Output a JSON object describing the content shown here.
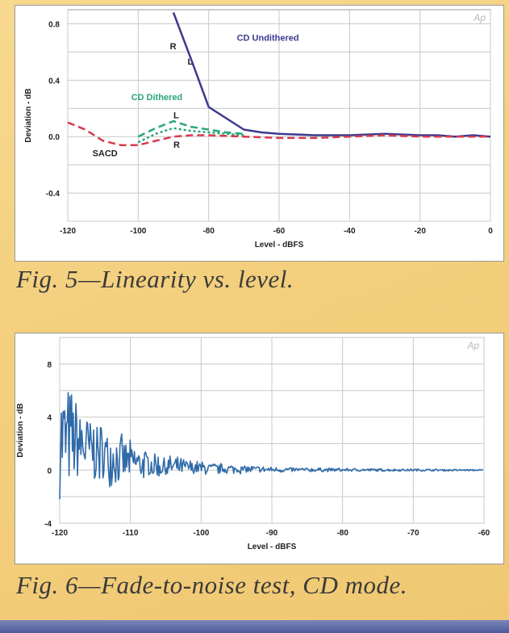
{
  "chart_data": [
    {
      "type": "line",
      "title": "",
      "caption": "Fig. 5—Linearity vs. level.",
      "xlabel": "Level - dBFS",
      "ylabel": "Deviation - dB",
      "xlim": [
        -120,
        0
      ],
      "ylim": [
        -0.6,
        0.9
      ],
      "x_ticks": [
        -120,
        -100,
        -80,
        -60,
        -40,
        -20,
        0
      ],
      "y_ticks": [
        0.8,
        0.4,
        0.0,
        -0.4
      ],
      "grid": true,
      "watermark": "Ap",
      "series": [
        {
          "name": "CD Undithered",
          "color": "#3c3a8e",
          "style": "solid",
          "x": [
            -90,
            -85,
            -80,
            -75,
            -70,
            -65,
            -60,
            -50,
            -40,
            -30,
            -20,
            -15,
            -10,
            -5,
            0
          ],
          "y": [
            0.88,
            0.55,
            0.21,
            0.13,
            0.05,
            0.03,
            0.02,
            0.01,
            0.01,
            0.02,
            0.01,
            0.01,
            0.0,
            0.01,
            0.0
          ]
        },
        {
          "name": "CD Dithered",
          "color": "#2aa57a",
          "style": "dashed",
          "x": [
            -100,
            -95,
            -90,
            -85,
            -80,
            -75,
            -70
          ],
          "y": [
            0.0,
            0.06,
            0.11,
            0.07,
            0.05,
            0.03,
            0.02
          ]
        },
        {
          "name": "",
          "color": "#2aa57a",
          "style": "dashed",
          "x": [
            -100,
            -95,
            -90,
            -85,
            -80,
            -75,
            -70
          ],
          "y": [
            -0.04,
            0.02,
            0.06,
            0.04,
            0.03,
            0.02,
            0.01
          ]
        },
        {
          "name": "SACD",
          "color": "#d83a4a",
          "style": "dashed",
          "x": [
            -120,
            -115,
            -110,
            -105,
            -100,
            -95,
            -90,
            -85,
            -80,
            -70,
            -60,
            -50,
            -40,
            -30,
            -20,
            -10,
            0
          ],
          "y": [
            0.1,
            0.05,
            -0.03,
            -0.06,
            -0.06,
            -0.03,
            0.0,
            0.01,
            0.01,
            0.0,
            -0.01,
            -0.01,
            0.0,
            0.01,
            0.0,
            0.0,
            0.0
          ]
        }
      ],
      "annotations": [
        {
          "text": "CD Undithered",
          "x": -72,
          "y": 0.68,
          "color": "#3c3a8e"
        },
        {
          "text": "CD Dithered",
          "x": -102,
          "y": 0.26,
          "color": "#2aa57a"
        },
        {
          "text": "SACD",
          "x": -113,
          "y": -0.14,
          "color": "#222222"
        },
        {
          "text": "R",
          "x": -91,
          "y": 0.62,
          "color": "#222222"
        },
        {
          "text": "L",
          "x": -86,
          "y": 0.51,
          "color": "#222222"
        },
        {
          "text": "L",
          "x": -90,
          "y": 0.13,
          "color": "#222222"
        },
        {
          "text": "R",
          "x": -90,
          "y": -0.08,
          "color": "#222222"
        }
      ]
    },
    {
      "type": "line",
      "title": "",
      "caption": "Fig. 6—Fade-to-noise test, CD mode.",
      "xlabel": "Level - dBFS",
      "ylabel": "Deviation - dB",
      "xlim": [
        -120,
        -60
      ],
      "ylim": [
        -4,
        10
      ],
      "x_ticks": [
        -120,
        -110,
        -100,
        -90,
        -80,
        -70,
        -60
      ],
      "y_ticks": [
        8,
        4,
        0,
        -4
      ],
      "grid": true,
      "watermark": "Ap",
      "series": [
        {
          "name": "",
          "color": "#2f6aa8",
          "style": "solid",
          "envelope": {
            "x": [
              -120,
              -118,
              -116,
              -114,
              -112,
              -110,
              -108,
              -106,
              -104,
              -102,
              -100,
              -98,
              -95,
              -92,
              -90,
              -85,
              -80,
              -75,
              -70,
              -65,
              -60
            ],
            "amplitude": [
              5.0,
              4.2,
              3.0,
              2.6,
              2.2,
              1.7,
              1.3,
              1.1,
              0.9,
              0.7,
              0.6,
              0.5,
              0.4,
              0.3,
              0.25,
              0.18,
              0.14,
              0.12,
              0.1,
              0.08,
              0.06
            ],
            "offset": [
              2.5,
              2.2,
              1.6,
              1.2,
              0.9,
              0.6,
              0.45,
              0.3,
              0.25,
              0.2,
              0.15,
              0.1,
              0.08,
              0.05,
              0.03,
              0.02,
              0.02,
              0.01,
              0.01,
              0.0,
              0.0
            ]
          }
        }
      ]
    }
  ]
}
